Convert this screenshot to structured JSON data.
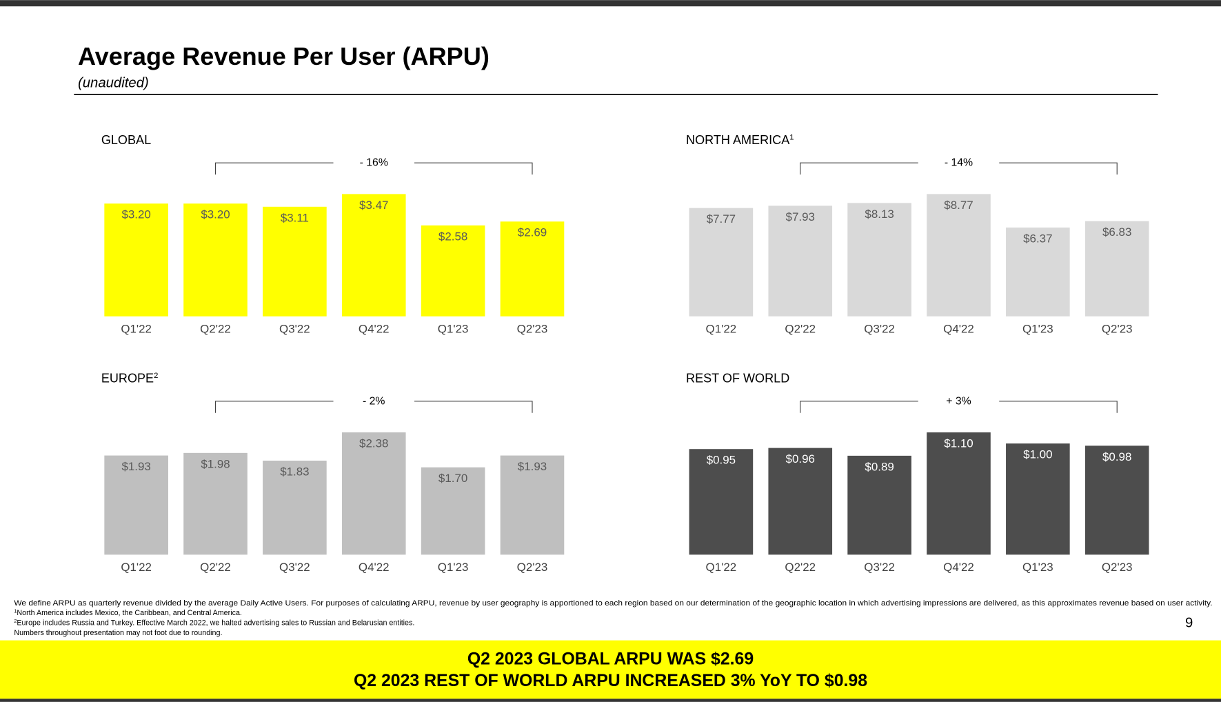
{
  "header": {
    "title": "Average Revenue Per User (ARPU)",
    "subtitle": "(unaudited)"
  },
  "chart_data": [
    {
      "type": "bar",
      "title": "GLOBAL",
      "annotation": "- 16%",
      "categories": [
        "Q1'22",
        "Q2'22",
        "Q3'22",
        "Q4'22",
        "Q1'23",
        "Q2'23"
      ],
      "values": [
        3.2,
        3.2,
        3.11,
        3.47,
        2.58,
        2.69
      ],
      "value_labels": [
        "$3.20",
        "$3.20",
        "$3.11",
        "$3.47",
        "$2.58",
        "$2.69"
      ],
      "color": "#ffff00",
      "label_color": "#595959"
    },
    {
      "type": "bar",
      "title": "NORTH AMERICA",
      "title_note": "1",
      "annotation": "- 14%",
      "categories": [
        "Q1'22",
        "Q2'22",
        "Q3'22",
        "Q4'22",
        "Q1'23",
        "Q2'23"
      ],
      "values": [
        7.77,
        7.93,
        8.13,
        8.77,
        6.37,
        6.83
      ],
      "value_labels": [
        "$7.77",
        "$7.93",
        "$8.13",
        "$8.77",
        "$6.37",
        "$6.83"
      ],
      "color": "#d9d9d9",
      "label_color": "#595959"
    },
    {
      "type": "bar",
      "title": "EUROPE",
      "title_note": "2",
      "annotation": "- 2%",
      "categories": [
        "Q1'22",
        "Q2'22",
        "Q3'22",
        "Q4'22",
        "Q1'23",
        "Q2'23"
      ],
      "values": [
        1.93,
        1.98,
        1.83,
        2.38,
        1.7,
        1.93
      ],
      "value_labels": [
        "$1.93",
        "$1.98",
        "$1.83",
        "$2.38",
        "$1.70",
        "$1.93"
      ],
      "color": "#bfbfbf",
      "label_color": "#595959"
    },
    {
      "type": "bar",
      "title": "REST OF WORLD",
      "annotation": "+ 3%",
      "categories": [
        "Q1'22",
        "Q2'22",
        "Q3'22",
        "Q4'22",
        "Q1'23",
        "Q2'23"
      ],
      "values": [
        0.95,
        0.96,
        0.89,
        1.1,
        1.0,
        0.98
      ],
      "value_labels": [
        "$0.95",
        "$0.96",
        "$0.89",
        "$1.10",
        "$1.00",
        "$0.98"
      ],
      "color": "#4d4d4d",
      "label_color": "#ffffff"
    }
  ],
  "footnotes": [
    {
      "text": "We define ARPU as quarterly revenue divided by the average Daily Active Users. For purposes of calculating ARPU, revenue by user geography is apportioned to each region based on our determination of the geographic location in which advertising impressions are delivered, as this approximates revenue based on user activity."
    },
    {
      "marker": "1",
      "text": "North America includes Mexico, the Caribbean, and Central America."
    },
    {
      "marker": "2",
      "text": "Europe includes Russia and Turkey. Effective March 2022, we halted advertising sales to Russian and Belarusian entities."
    },
    {
      "text": "Numbers throughout presentation may not foot due to rounding."
    }
  ],
  "page_number": "9",
  "banner": [
    "Q2 2023 GLOBAL ARPU WAS $2.69",
    "Q2 2023 REST OF WORLD ARPU INCREASED 3% YoY TO $0.98"
  ]
}
